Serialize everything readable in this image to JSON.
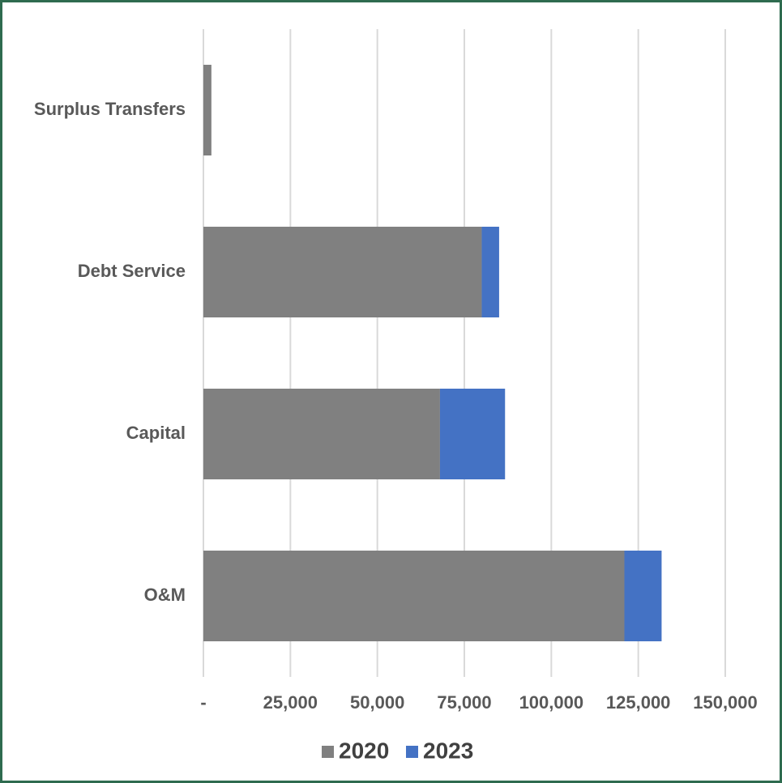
{
  "chart_data": {
    "type": "stacked-barh",
    "categories": [
      "Surplus Transfers",
      "Debt Service",
      "Capital",
      "O&M"
    ],
    "series": [
      {
        "name": "2020",
        "color": "#808080",
        "values": [
          2300,
          80000,
          68000,
          121000
        ]
      },
      {
        "name": "2023",
        "color": "#4472c4",
        "values": [
          0,
          5000,
          18700,
          10700
        ]
      }
    ],
    "xlim": [
      0,
      150000
    ],
    "xticks": [
      {
        "value": 0,
        "label": "-"
      },
      {
        "value": 25000,
        "label": "25,000"
      },
      {
        "value": 50000,
        "label": "50,000"
      },
      {
        "value": 75000,
        "label": "75,000"
      },
      {
        "value": 100000,
        "label": "100,000"
      },
      {
        "value": 125000,
        "label": "125,000"
      },
      {
        "value": 150000,
        "label": "150,000"
      }
    ],
    "grid": true,
    "legend": "bottom"
  }
}
